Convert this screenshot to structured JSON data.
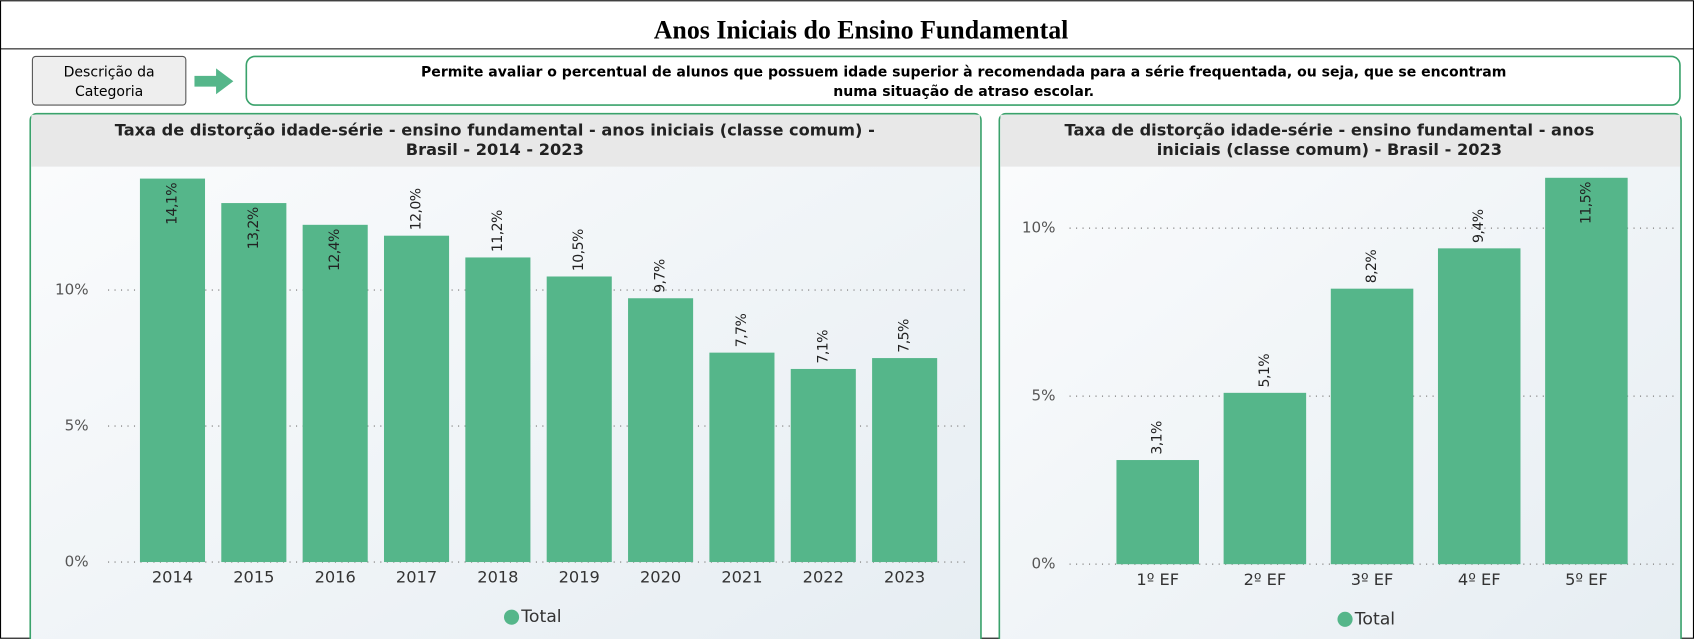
{
  "page_title": "Anos Iniciais do Ensino Fundamental",
  "description_label": [
    "Descrição da",
    "Categoria"
  ],
  "description_text": [
    "Permite avaliar o percentual de alunos que possuem idade superior à recomendada para a série frequentada, ou seja, que se encontram",
    "numa situação de atraso escolar."
  ],
  "chart_data": [
    {
      "type": "bar",
      "title": [
        "Taxa de distorção idade-série - ensino fundamental - anos iniciais (classe comum) -",
        "Brasil - 2014 - 2023"
      ],
      "categories": [
        "2014",
        "2015",
        "2016",
        "2017",
        "2018",
        "2019",
        "2020",
        "2021",
        "2022",
        "2023"
      ],
      "series": [
        {
          "name": "Total",
          "color": "#55b68a",
          "values": [
            14.1,
            13.2,
            12.4,
            12.0,
            11.2,
            10.5,
            9.7,
            7.7,
            7.1,
            7.5
          ],
          "value_labels": [
            "14,1%",
            "13,2%",
            "12,4%",
            "12,0%",
            "11,2%",
            "10,5%",
            "9,7%",
            "7,7%",
            "7,1%",
            "7,5%"
          ]
        }
      ],
      "ylim": [
        0,
        14.5
      ],
      "yticks": [
        {
          "value": 0,
          "label": "0%"
        },
        {
          "value": 5,
          "label": "5%"
        },
        {
          "value": 10,
          "label": "10%"
        }
      ],
      "grid": true,
      "legend": "bottom"
    },
    {
      "type": "bar",
      "title": [
        "Taxa de distorção idade-série - ensino fundamental - anos",
        "iniciais (classe comum) - Brasil - 2023"
      ],
      "categories": [
        "1º EF",
        "2º EF",
        "3º EF",
        "4º EF",
        "5º EF"
      ],
      "series": [
        {
          "name": "Total",
          "color": "#55b68a",
          "values": [
            3.1,
            5.1,
            8.2,
            9.4,
            11.5
          ],
          "value_labels": [
            "3,1%",
            "5,1%",
            "8,2%",
            "9,4%",
            "11,5%"
          ]
        }
      ],
      "ylim": [
        0,
        11.8
      ],
      "yticks": [
        {
          "value": 0,
          "label": "0%"
        },
        {
          "value": 5,
          "label": "5%"
        },
        {
          "value": 10,
          "label": "10%"
        }
      ],
      "grid": true,
      "legend": "bottom"
    }
  ]
}
